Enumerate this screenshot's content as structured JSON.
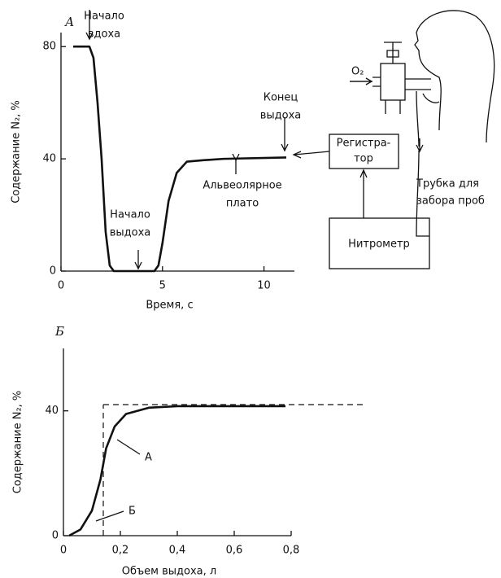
{
  "chart_data": [
    {
      "type": "line",
      "panel": "А",
      "ylabel": "Содержание N₂, %",
      "xlabel": "Время, с",
      "xlim": [
        0,
        11.5
      ],
      "ylim": [
        0,
        85
      ],
      "xticks": [
        0,
        5,
        10
      ],
      "yticks": [
        0,
        40,
        80
      ],
      "x": [
        0.6,
        1.4,
        1.6,
        1.8,
        2.0,
        2.2,
        2.4,
        2.6,
        4.6,
        4.8,
        5.0,
        5.3,
        5.7,
        6.2,
        7.0,
        8.0,
        11.1
      ],
      "series": [
        {
          "color": "#111111",
          "values": [
            80,
            80,
            76,
            60,
            40,
            14,
            2,
            0,
            0,
            2,
            10,
            25,
            35,
            39,
            39.5,
            40,
            40.5
          ]
        }
      ],
      "annotations": [
        {
          "lines": [
            "Начало",
            "вдоха"
          ],
          "x": 1.4,
          "y": 80
        },
        {
          "lines": [
            "Начало",
            "выдоха"
          ],
          "x": 3.9,
          "y": 0
        },
        {
          "lines": [
            "Конец",
            "выдоха"
          ],
          "x": 11.0,
          "y": 40.5
        },
        {
          "lines": [
            "Альвеолярное",
            "плато"
          ],
          "x": 8.6,
          "y": 40
        }
      ]
    },
    {
      "type": "line",
      "panel": "Б",
      "ylabel": "Содержание N₂, %",
      "xlabel": "Объем выдоха, л",
      "xlim": [
        0,
        0.8
      ],
      "ylim": [
        0,
        60
      ],
      "xticks": [
        0,
        {
          "value": 0.2,
          "label": "0,2"
        },
        {
          "value": 0.4,
          "label": "0,4"
        },
        {
          "value": 0.6,
          "label": "0,6"
        },
        {
          "value": 0.8,
          "label": "0,8"
        }
      ],
      "yticks": [
        0,
        40
      ],
      "x": [
        0.02,
        0.06,
        0.1,
        0.13,
        0.15,
        0.18,
        0.22,
        0.3,
        0.4,
        0.78
      ],
      "series": [
        {
          "color": "#111111",
          "values": [
            0,
            2,
            8,
            18,
            28,
            35,
            39,
            41,
            41.5,
            41.5
          ]
        }
      ],
      "hline": {
        "y": 42,
        "x": [
          0.14,
          1.06
        ]
      },
      "vline": {
        "x": 0.14,
        "y": [
          0,
          42
        ]
      },
      "annotations": [
        {
          "lines": [
            "А"
          ],
          "x": 0.19,
          "y": 35
        },
        {
          "lines": [
            "Б"
          ],
          "x": 0.11,
          "y": 6
        }
      ]
    }
  ],
  "diagram": {
    "gas": "O₂",
    "recorder": [
      "Регистра-",
      "тор"
    ],
    "nitrometer": "Нитрометр",
    "tube": [
      "Трубка для",
      "забора проб"
    ]
  }
}
